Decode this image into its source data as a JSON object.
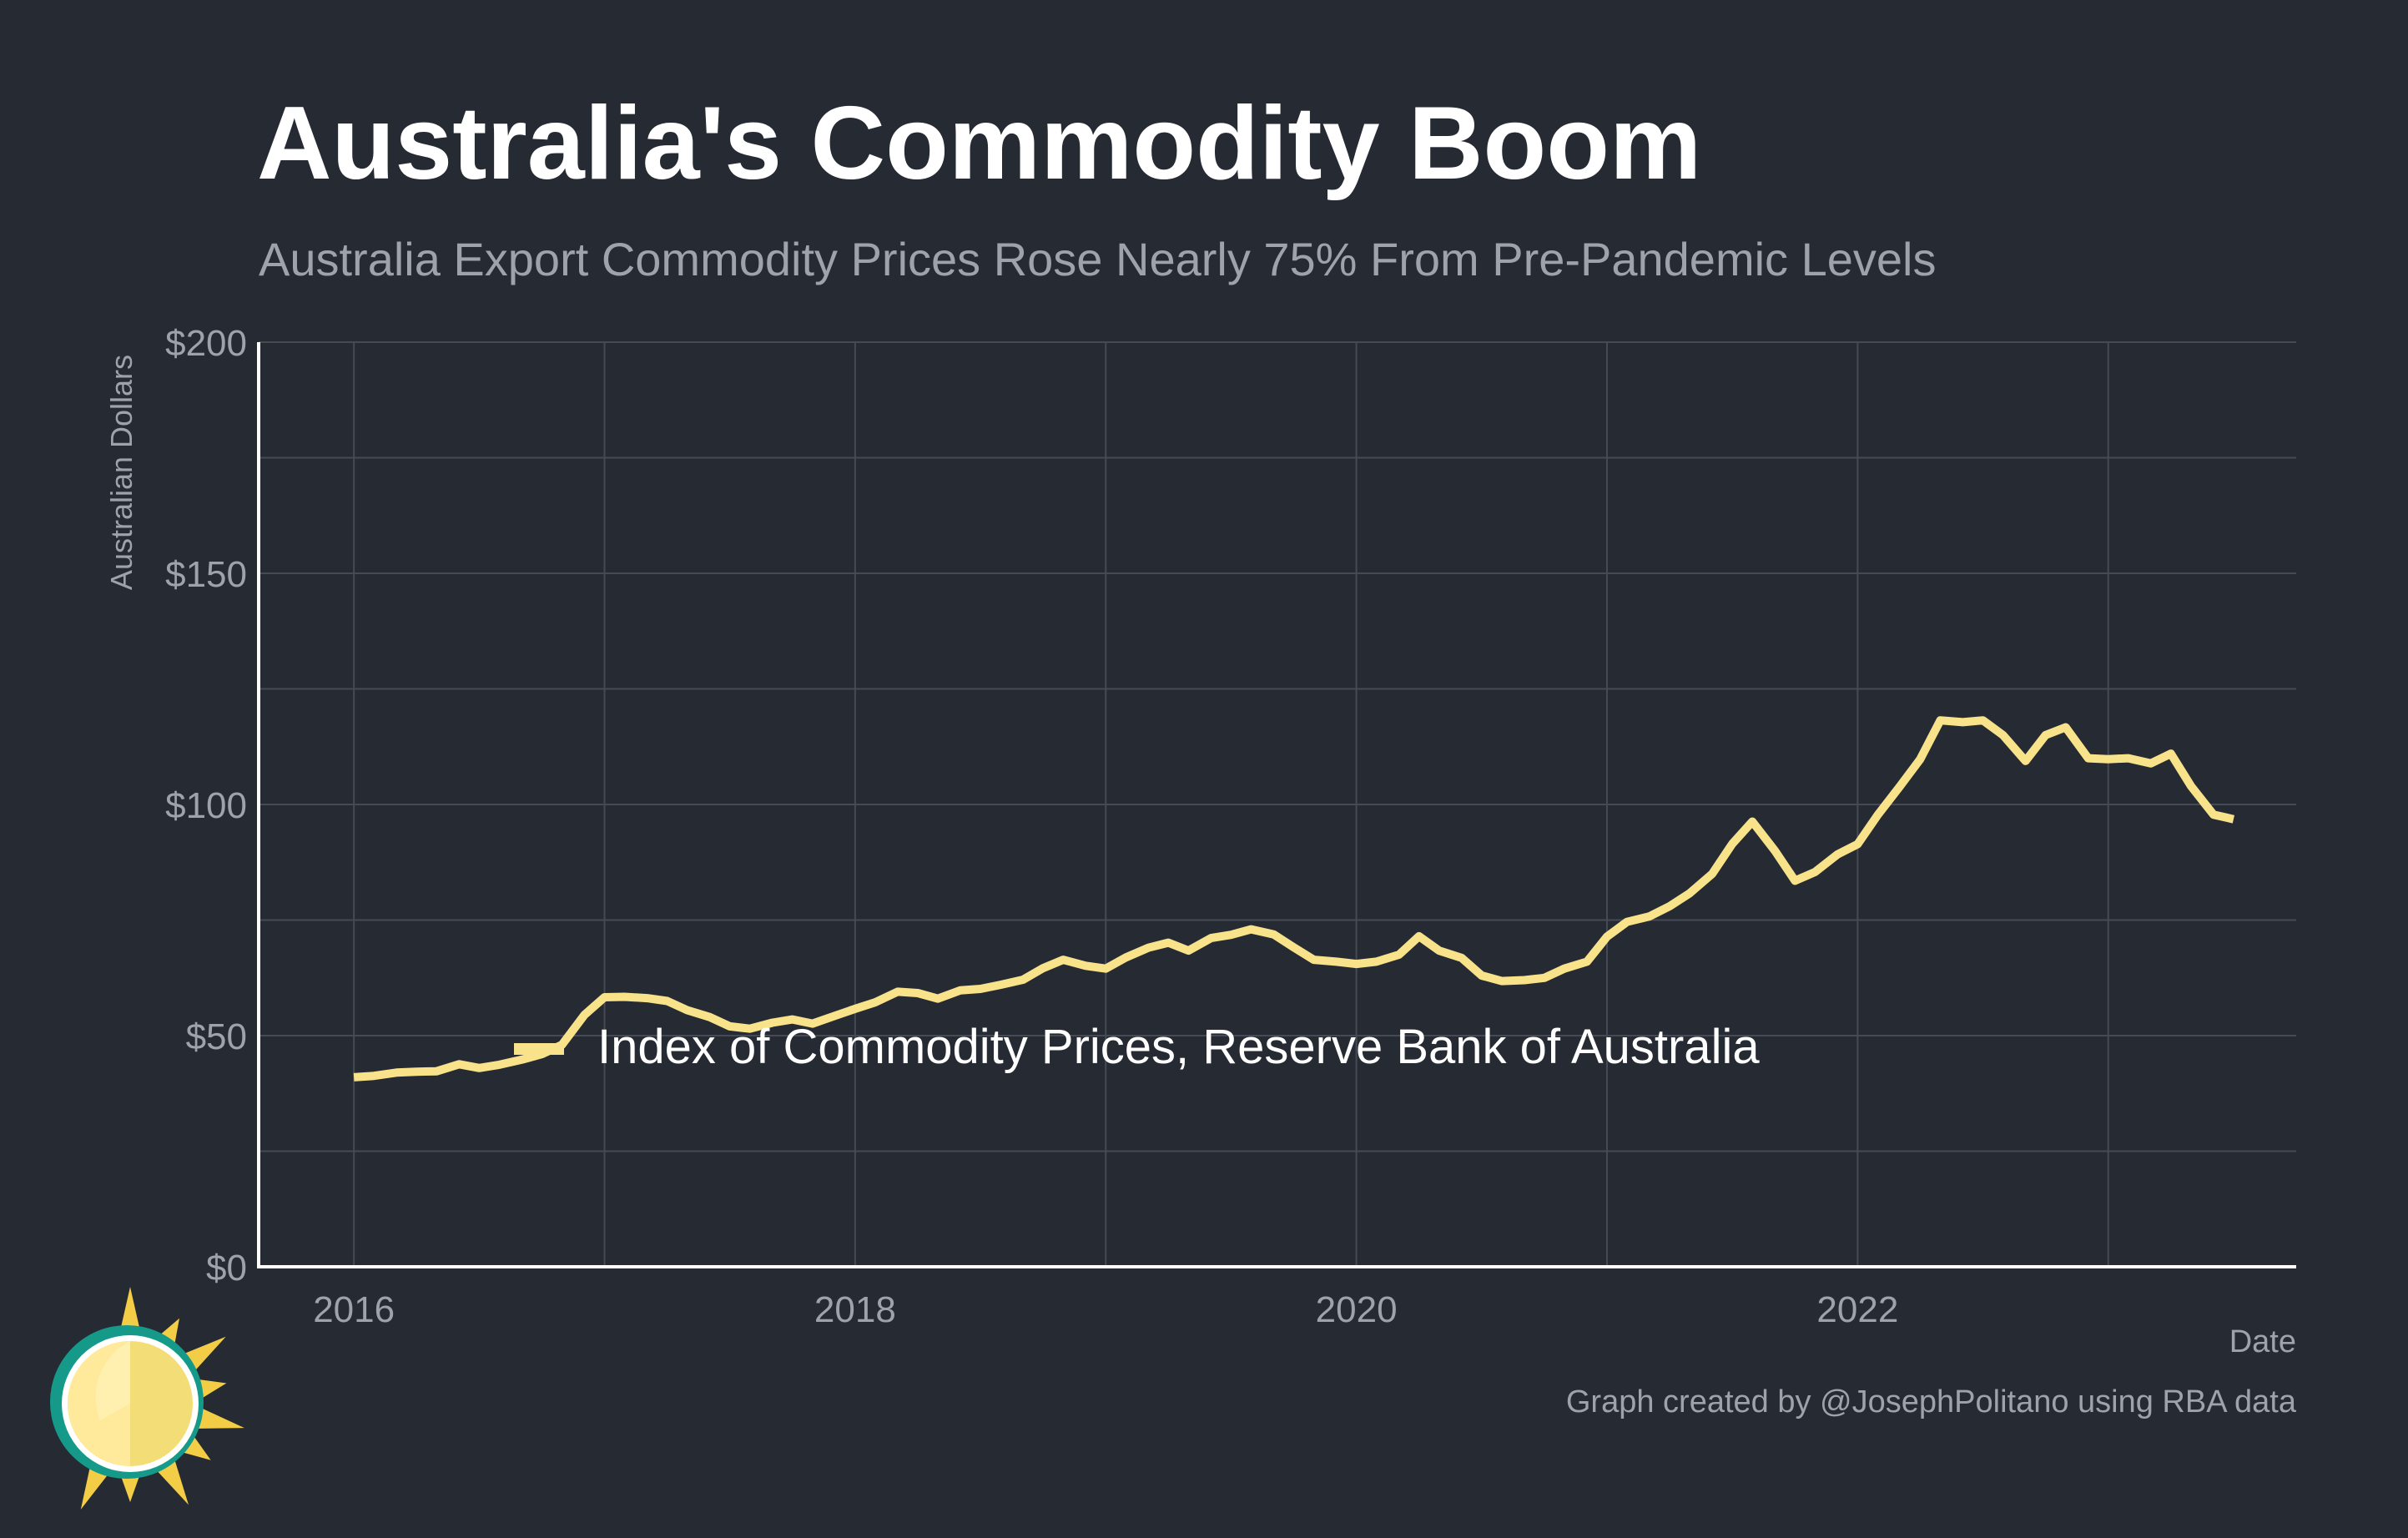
{
  "title": "Australia's Commodity Boom",
  "subtitle": "Australia Export Commodity Prices Rose Nearly 75% From Pre-Pandemic Levels",
  "caption": "Graph created by @JosephPolitano using RBA data",
  "colors": {
    "background": "#252a33",
    "line": "#f8e28a",
    "grid": "#454a54",
    "axis": "#ffffff",
    "muted_text": "#9ea2aa"
  },
  "chart_data": {
    "type": "line",
    "title": "Australia's Commodity Boom",
    "subtitle": "Australia Export Commodity Prices Rose Nearly 75% From Pre-Pandemic Levels",
    "xlabel": "Date",
    "ylabel": "Australian Dollars",
    "xlim": [
      2015.62,
      2023.75
    ],
    "ylim": [
      0,
      200
    ],
    "x_ticks": [
      {
        "value": 2016,
        "label": "2016"
      },
      {
        "value": 2018,
        "label": "2018"
      },
      {
        "value": 2020,
        "label": "2020"
      },
      {
        "value": 2022,
        "label": "2022"
      }
    ],
    "y_ticks": [
      {
        "value": 0,
        "label": "$0"
      },
      {
        "value": 50,
        "label": "$50"
      },
      {
        "value": 100,
        "label": "$100"
      },
      {
        "value": 150,
        "label": "$150"
      },
      {
        "value": 200,
        "label": "$200"
      }
    ],
    "grid": true,
    "legend": "inline",
    "series": [
      {
        "name": "Index of Commodity Prices, Reserve Bank of Australia",
        "x": [
          2016.0,
          2016.08,
          2016.17,
          2016.25,
          2016.33,
          2016.42,
          2016.5,
          2016.58,
          2016.67,
          2016.75,
          2016.83,
          2016.92,
          2017.0,
          2017.08,
          2017.17,
          2017.25,
          2017.33,
          2017.42,
          2017.5,
          2017.58,
          2017.67,
          2017.75,
          2017.83,
          2017.92,
          2018.0,
          2018.08,
          2018.17,
          2018.25,
          2018.33,
          2018.42,
          2018.5,
          2018.58,
          2018.67,
          2018.75,
          2018.83,
          2018.92,
          2019.0,
          2019.08,
          2019.17,
          2019.25,
          2019.33,
          2019.42,
          2019.5,
          2019.58,
          2019.67,
          2019.75,
          2019.83,
          2019.92,
          2020.0,
          2020.08,
          2020.17,
          2020.25,
          2020.33,
          2020.42,
          2020.5,
          2020.58,
          2020.67,
          2020.75,
          2020.83,
          2020.92,
          2021.0,
          2021.08,
          2021.17,
          2021.25,
          2021.33,
          2021.42,
          2021.5,
          2021.58,
          2021.67,
          2021.75,
          2021.83,
          2021.92,
          2022.0,
          2022.08,
          2022.17,
          2022.25,
          2022.33,
          2022.42,
          2022.5,
          2022.58,
          2022.67,
          2022.75,
          2022.83,
          2022.92,
          2023.0,
          2023.08,
          2023.17,
          2023.25,
          2023.33,
          2023.42,
          2023.5
        ],
        "values": [
          41.0,
          41.3,
          42.0,
          42.2,
          42.3,
          43.8,
          43.0,
          43.7,
          44.8,
          46.0,
          48.0,
          54.5,
          58.3,
          58.4,
          58.1,
          57.5,
          55.5,
          54.0,
          52.0,
          51.5,
          52.8,
          53.5,
          52.6,
          54.3,
          55.8,
          57.2,
          59.5,
          59.2,
          58.0,
          59.8,
          60.1,
          61.0,
          62.1,
          64.6,
          66.4,
          65.1,
          64.5,
          66.9,
          69.0,
          70.1,
          68.4,
          71.1,
          71.8,
          73.0,
          71.9,
          69.1,
          66.4,
          66.0,
          65.5,
          66.0,
          67.5,
          71.5,
          68.4,
          66.8,
          63.0,
          61.8,
          62.0,
          62.5,
          64.5,
          66.0,
          71.4,
          74.6,
          75.8,
          78.0,
          80.8,
          85.0,
          91.5,
          96.3,
          90.0,
          83.5,
          85.4,
          89.2,
          91.4,
          97.7,
          104.0,
          109.8,
          118.2,
          117.8,
          118.2,
          115.0,
          109.4,
          115.0,
          116.7,
          110.0,
          109.8,
          110.0,
          108.9,
          111.0,
          104.0,
          97.8,
          96.8
        ]
      }
    ]
  }
}
